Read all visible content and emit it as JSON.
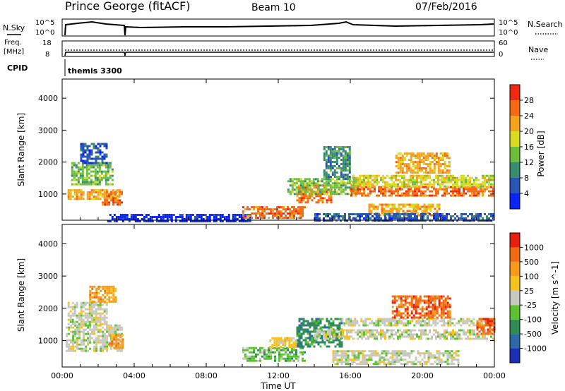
{
  "header": {
    "station": "Prince George (fitACF)",
    "beam": "Beam 10",
    "date": "07/Feb/2016"
  },
  "panels": {
    "noise": {
      "left_label": "N.Sky",
      "right_label": "N.Search",
      "left_ticks": [
        "10^5",
        "10^0"
      ],
      "right_ticks": [
        "10^5",
        "10^0"
      ]
    },
    "freq": {
      "left_label_1": "Freq.",
      "left_label_2": "[MHz]",
      "right_label": "Nave",
      "left_ticks": [
        "18",
        "8"
      ],
      "right_ticks": [
        "60",
        "0"
      ]
    },
    "cpid": {
      "label": "CPID",
      "value": "themis 3300"
    }
  },
  "chart_data": [
    {
      "type": "heatmap",
      "title": "",
      "ylabel": "Slant Range [km]",
      "ylim": [
        180,
        4600
      ],
      "yticks": [
        1000,
        2000,
        3000,
        4000
      ],
      "colorbar": {
        "label": "Power [dB]",
        "ticks": [
          "4",
          "8",
          "12",
          "16",
          "20",
          "24",
          "28"
        ],
        "colors": [
          "#0b24f6",
          "#2a55b4",
          "#3a8c6e",
          "#6cbe3c",
          "#d8dc1e",
          "#f5a21e",
          "#f56a14",
          "#f02a10"
        ]
      },
      "regions": [
        {
          "t0": 0.3,
          "t1": 3.2,
          "r0": 850,
          "r1": 1150,
          "level": 5
        },
        {
          "t0": 0.5,
          "t1": 2.8,
          "r0": 1300,
          "r1": 2000,
          "level": 3
        },
        {
          "t0": 2.2,
          "t1": 3.3,
          "r0": 700,
          "r1": 1100,
          "level": 6
        },
        {
          "t0": 1.0,
          "t1": 2.5,
          "r0": 2000,
          "r1": 2600,
          "level": 1
        },
        {
          "t0": 2.5,
          "t1": 10.5,
          "r0": 180,
          "r1": 380,
          "level": 0
        },
        {
          "t0": 10.0,
          "t1": 13.5,
          "r0": 250,
          "r1": 620,
          "level": 6
        },
        {
          "t0": 13.0,
          "t1": 15.0,
          "r0": 750,
          "r1": 1300,
          "level": 6
        },
        {
          "t0": 12.5,
          "t1": 16.5,
          "r0": 1000,
          "r1": 1500,
          "level": 3
        },
        {
          "t0": 14.5,
          "t1": 16.0,
          "r0": 1500,
          "r1": 2500,
          "level": 2
        },
        {
          "t0": 16.0,
          "t1": 24.0,
          "r0": 950,
          "r1": 1250,
          "level": 6
        },
        {
          "t0": 16.0,
          "t1": 24.0,
          "r0": 1250,
          "r1": 1600,
          "level": 4
        },
        {
          "t0": 18.5,
          "t1": 21.5,
          "r0": 1700,
          "r1": 2300,
          "level": 5
        },
        {
          "t0": 17.0,
          "t1": 21.0,
          "r0": 350,
          "r1": 700,
          "level": 5
        },
        {
          "t0": 14.0,
          "t1": 24.0,
          "r0": 200,
          "r1": 400,
          "level": 1
        }
      ]
    },
    {
      "type": "heatmap",
      "title": "",
      "ylabel": "Slant Range [km]",
      "xlabel": "Time UT",
      "xticks": [
        "00:00",
        "04:00",
        "08:00",
        "12:00",
        "16:00",
        "20:00",
        "00:00"
      ],
      "xlim": [
        0,
        24
      ],
      "ylim": [
        180,
        4600
      ],
      "yticks": [
        1000,
        2000,
        3000,
        4000
      ],
      "colorbar": {
        "label": "Velocity [m s^-1]",
        "ticks": [
          "1000",
          "500",
          "100",
          "25",
          "-25",
          "-100",
          "-500",
          "-1000"
        ],
        "colors": [
          "#1a2fb4",
          "#2e6aa8",
          "#2e8c54",
          "#5cc232",
          "#c8c8c0",
          "#f5c21e",
          "#f59a1a",
          "#f06a14",
          "#e81e0e"
        ]
      },
      "regions": [
        {
          "t0": 0.2,
          "t1": 3.3,
          "r0": 700,
          "r1": 1500,
          "level": 4
        },
        {
          "t0": 0.3,
          "t1": 2.5,
          "r0": 1500,
          "r1": 2200,
          "level": 4
        },
        {
          "t0": 2.6,
          "t1": 3.4,
          "r0": 800,
          "r1": 1200,
          "level": 6
        },
        {
          "t0": 1.5,
          "t1": 3.0,
          "r0": 2200,
          "r1": 2700,
          "level": 6
        },
        {
          "t0": 10.0,
          "t1": 13.5,
          "r0": 400,
          "r1": 800,
          "level": 3
        },
        {
          "t0": 13.0,
          "t1": 15.5,
          "r0": 800,
          "r1": 1700,
          "level": 2
        },
        {
          "t0": 14.0,
          "t1": 24.0,
          "r0": 1050,
          "r1": 1350,
          "level": 4
        },
        {
          "t0": 15.5,
          "t1": 24.0,
          "r0": 1500,
          "r1": 1700,
          "level": 4
        },
        {
          "t0": 18.3,
          "t1": 21.5,
          "r0": 1700,
          "r1": 2400,
          "level": 7
        },
        {
          "t0": 23.0,
          "t1": 24.0,
          "r0": 1200,
          "r1": 1700,
          "level": 7
        },
        {
          "t0": 15.0,
          "t1": 22.0,
          "r0": 300,
          "r1": 700,
          "level": 4
        },
        {
          "t0": 11.5,
          "t1": 13.0,
          "r0": 800,
          "r1": 1100,
          "level": 5
        }
      ]
    }
  ]
}
